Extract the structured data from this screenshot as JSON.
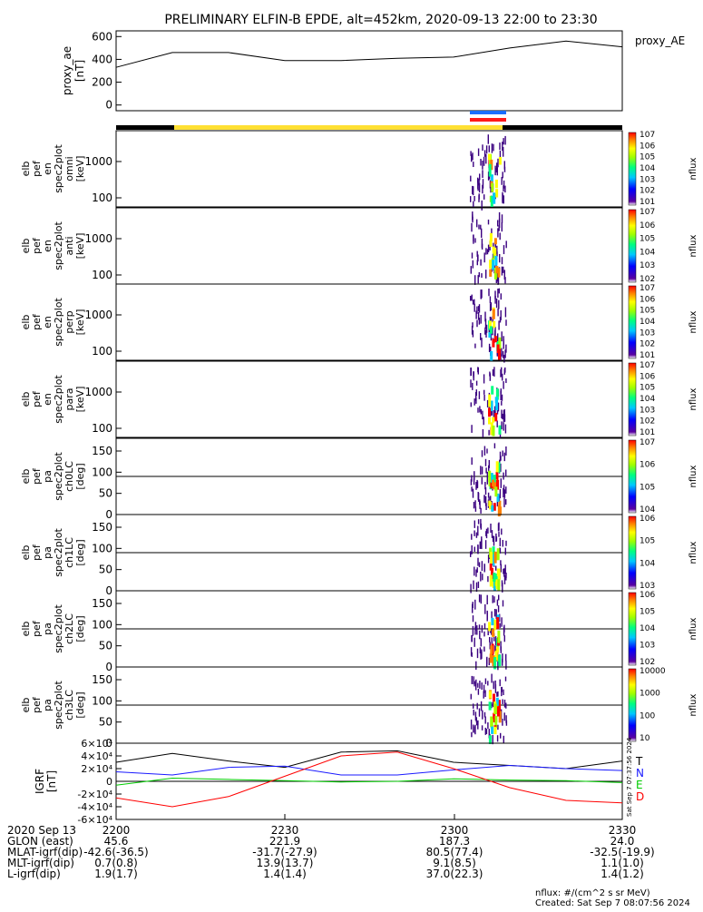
{
  "title": "PRELIMINARY ELFIN-B EPDE, alt=452km, 2020-09-13 22:00 to 23:30",
  "proxy_panel": {
    "ylabel": "proxy_ae [nT]",
    "ylabel_lines": [
      "proxy_ae",
      "[nT]"
    ],
    "legend": "proxy_AE",
    "ticks": [
      "0",
      "200",
      "400",
      "600"
    ]
  },
  "spectrogram_panels": [
    {
      "ylabel_lines": [
        "elb",
        "pef",
        "en",
        "spec2plot",
        "omni",
        "[keV]"
      ],
      "ticks": [
        "100",
        "1000"
      ],
      "colorbar_ticks": [
        "101",
        "102",
        "103",
        "104",
        "105",
        "106",
        "107"
      ],
      "unit": "nflux"
    },
    {
      "ylabel_lines": [
        "elb",
        "pef",
        "en",
        "spec2plot",
        "anti",
        "[keV]"
      ],
      "ticks": [
        "100",
        "1000"
      ],
      "colorbar_ticks": [
        "102",
        "103",
        "104",
        "105",
        "106",
        "107"
      ],
      "unit": "nflux"
    },
    {
      "ylabel_lines": [
        "elb",
        "pef",
        "en",
        "spec2plot",
        "perp",
        "[keV]"
      ],
      "ticks": [
        "100",
        "1000"
      ],
      "colorbar_ticks": [
        "101",
        "102",
        "103",
        "104",
        "105",
        "106",
        "107"
      ],
      "unit": "nflux"
    },
    {
      "ylabel_lines": [
        "elb",
        "pef",
        "en",
        "spec2plot",
        "para",
        "[keV]"
      ],
      "ticks": [
        "100",
        "1000"
      ],
      "colorbar_ticks": [
        "101",
        "102",
        "103",
        "104",
        "105",
        "106",
        "107"
      ],
      "unit": "nflux"
    },
    {
      "ylabel_lines": [
        "elb",
        "pef",
        "pa",
        "spec2plot",
        "ch0LC",
        "[deg]"
      ],
      "ticks": [
        "0",
        "50",
        "100",
        "150"
      ],
      "colorbar_ticks": [
        "104",
        "105",
        "106",
        "107"
      ],
      "unit": "nflux"
    },
    {
      "ylabel_lines": [
        "elb",
        "pef",
        "pa",
        "spec2plot",
        "ch1LC",
        "[deg]"
      ],
      "ticks": [
        "0",
        "50",
        "100",
        "150"
      ],
      "colorbar_ticks": [
        "103",
        "104",
        "105",
        "106"
      ],
      "unit": "nflux"
    },
    {
      "ylabel_lines": [
        "elb",
        "pef",
        "pa",
        "spec2plot",
        "ch2LC",
        "[deg]"
      ],
      "ticks": [
        "0",
        "50",
        "100",
        "150"
      ],
      "colorbar_ticks": [
        "102",
        "103",
        "104",
        "105",
        "106"
      ],
      "unit": "nflux"
    },
    {
      "ylabel_lines": [
        "elb",
        "pef",
        "pa",
        "spec2plot",
        "ch3LC",
        "[deg]"
      ],
      "ticks": [
        "0",
        "50",
        "100",
        "150"
      ],
      "colorbar_ticks": [
        "10",
        "100",
        "1000",
        "10000"
      ],
      "unit": "nflux"
    }
  ],
  "igrf_panel": {
    "ylabel_lines": [
      "IGRF",
      "[nT]"
    ],
    "ticks": [
      "-6×10⁴",
      "-4×10⁴",
      "-2×10⁴",
      "0",
      "2×10⁴",
      "4×10⁴",
      "6×10⁴"
    ],
    "legend": [
      "T",
      "N",
      "E",
      "D"
    ],
    "legend_colors": [
      "#000000",
      "#1a1aff",
      "#00cc00",
      "#ff0000"
    ],
    "side_stamp": "Sat Sep  7 07:37:56 2024"
  },
  "footer": {
    "rows": [
      {
        "label": "2020 Sep 13",
        "values": [
          "2200",
          "2230",
          "2300",
          "2330"
        ]
      },
      {
        "label": "GLON (east)",
        "values": [
          "45.6",
          "221.9",
          "187.3",
          "24.0"
        ]
      },
      {
        "label": "MLAT-igrf(dip)",
        "values": [
          "-42.6(-36.5)",
          "-31.7(-27.9)",
          "80.5(77.4)",
          "-32.5(-19.9)"
        ]
      },
      {
        "label": "MLT-igrf(dip)",
        "values": [
          "0.7(0.8)",
          "13.9(13.7)",
          "9.1(8.5)",
          "1.1(1.0)"
        ]
      },
      {
        "label": "L-igrf(dip)",
        "values": [
          "1.9(1.7)",
          "1.4(1.4)",
          "37.0(22.3)",
          "1.4(1.2)"
        ]
      }
    ],
    "nflux_note": "nflux: #/(cm^2 s sr MeV)",
    "created": "Created: Sat Sep  7 08:07:56 2024"
  },
  "chart_data": {
    "type": "line",
    "x_time": [
      "22:00",
      "22:10",
      "22:20",
      "22:30",
      "22:40",
      "22:50",
      "23:00",
      "23:10",
      "23:20",
      "23:30"
    ],
    "proxy_ae": [
      330,
      460,
      460,
      390,
      390,
      410,
      420,
      500,
      560,
      510
    ],
    "ylim": [
      0,
      600
    ],
    "igrf_series": [
      {
        "name": "T",
        "color": "#000000",
        "values": [
          30000,
          44000,
          32000,
          22000,
          46000,
          48000,
          30000,
          25000,
          20000,
          32000
        ]
      },
      {
        "name": "N",
        "color": "#1a1aff",
        "values": [
          15000,
          10000,
          22000,
          24000,
          10000,
          10000,
          18000,
          25000,
          20000,
          17000
        ]
      },
      {
        "name": "E",
        "color": "#00cc00",
        "values": [
          -6000,
          5000,
          3000,
          1000,
          -1000,
          0,
          4000,
          2000,
          1000,
          -2000
        ]
      },
      {
        "name": "D",
        "color": "#ff0000",
        "values": [
          -26000,
          -40000,
          -24000,
          8000,
          40000,
          46000,
          20000,
          -10000,
          -30000,
          -34000
        ]
      }
    ],
    "igrf_ylim": [
      -60000,
      60000
    ]
  },
  "colors": {
    "orbit_bar_black": "#000000",
    "orbit_bar_yellow": "#ffe033",
    "science_zone_blue": "#1a6fff",
    "science_zone_red": "#ff1a1a"
  }
}
